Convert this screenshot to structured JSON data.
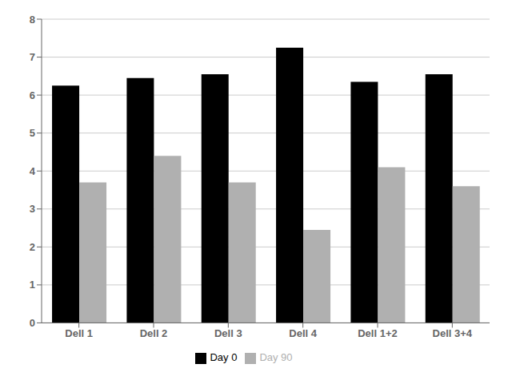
{
  "chart_data": {
    "type": "bar",
    "categories": [
      "Dell 1",
      "Dell 2",
      "Dell 3",
      "Dell 4",
      "Dell 1+2",
      "Dell 3+4"
    ],
    "series": [
      {
        "name": "Day 0",
        "color": "#000000",
        "values": [
          6.25,
          6.45,
          6.55,
          7.25,
          6.35,
          6.55
        ]
      },
      {
        "name": "Day 90",
        "color": "#b0b0b0",
        "values": [
          3.7,
          4.4,
          3.7,
          2.45,
          4.1,
          3.6
        ]
      }
    ],
    "ylim": [
      0,
      8
    ],
    "yticks": [
      0,
      1,
      2,
      3,
      4,
      5,
      6,
      7,
      8
    ],
    "grid": true,
    "legend": "bottom"
  }
}
